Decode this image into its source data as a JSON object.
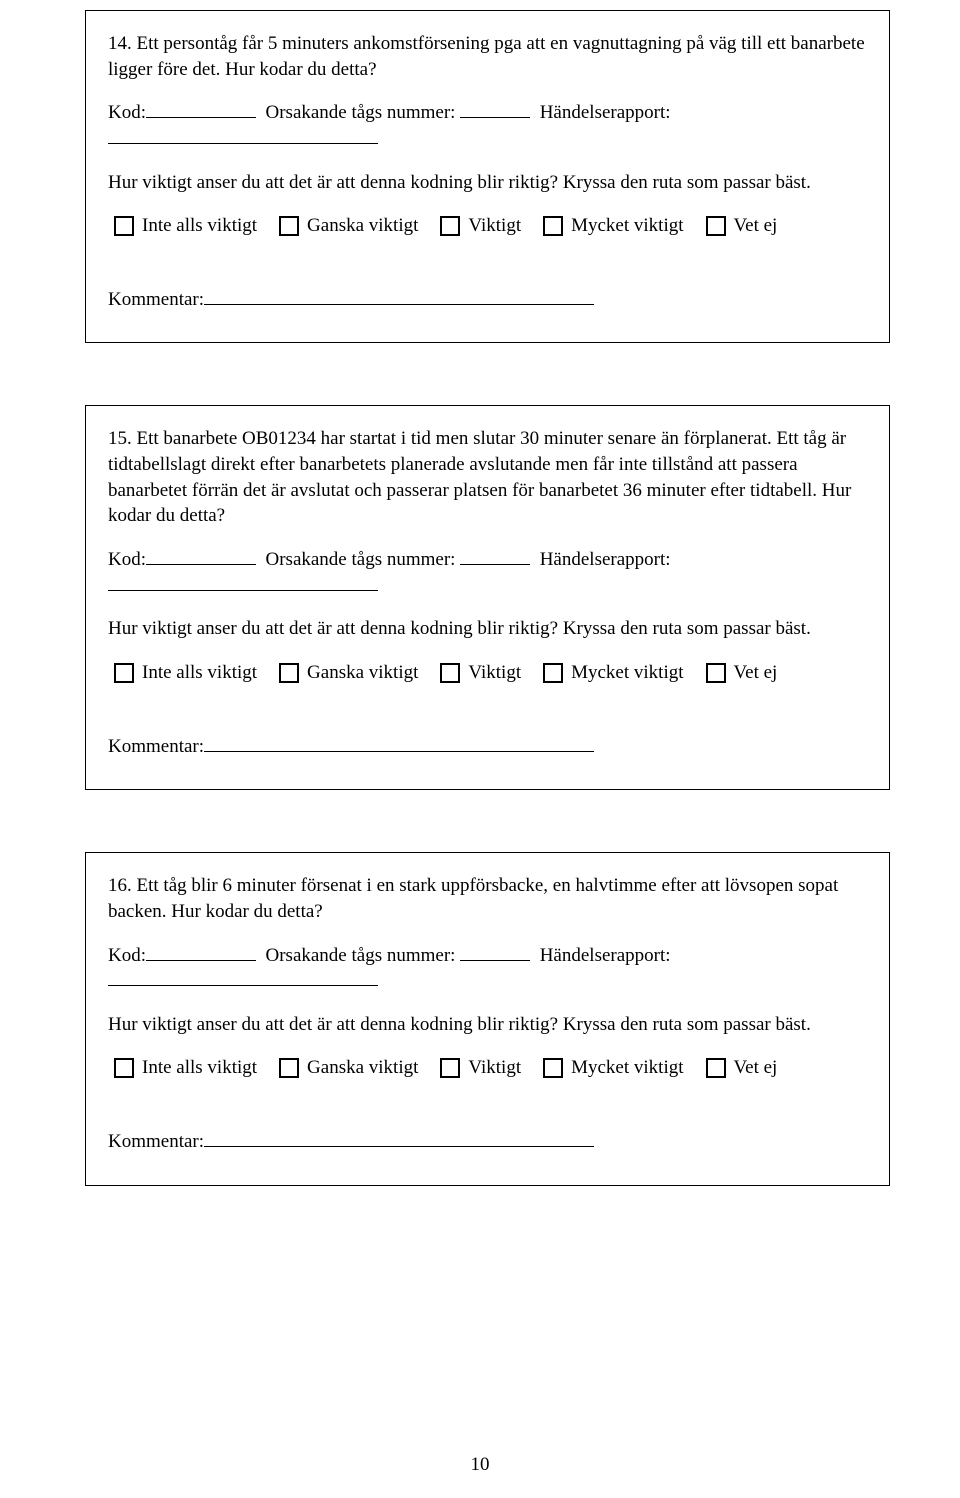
{
  "page_number": "10",
  "labels": {
    "kod": "Kod:",
    "orsakande": "Orsakande tågs nummer:",
    "handelserapport": "Händelserapport:",
    "instruction": "Hur viktigt anser du att det är att denna kodning blir riktig? Kryssa den ruta som passar bäst.",
    "opt_inte": "Inte alls viktigt",
    "opt_ganska": "Ganska viktigt",
    "opt_viktigt": "Viktigt",
    "opt_mycket": "Mycket viktigt",
    "opt_vetej": "Vet ej",
    "kommentar": "Kommentar:"
  },
  "q14": {
    "text": "14. Ett persontåg får 5 minuters ankomstförsening pga att en vagnuttagning på väg till ett banarbete ligger före det. Hur kodar du detta?"
  },
  "q15": {
    "text": "15. Ett banarbete OB01234 har startat i tid men slutar 30 minuter senare än förplanerat. Ett tåg är tidtabellslagt direkt efter banarbetets planerade avslutande men får inte tillstånd att passera banarbetet förrän det är avslutat och passerar platsen för banarbetet 36 minuter efter tidtabell. Hur kodar du detta?"
  },
  "q16": {
    "text": "16. Ett tåg blir 6 minuter försenat i en stark uppförsbacke, en halvtimme efter att lövsopen sopat backen. Hur kodar du detta?"
  }
}
